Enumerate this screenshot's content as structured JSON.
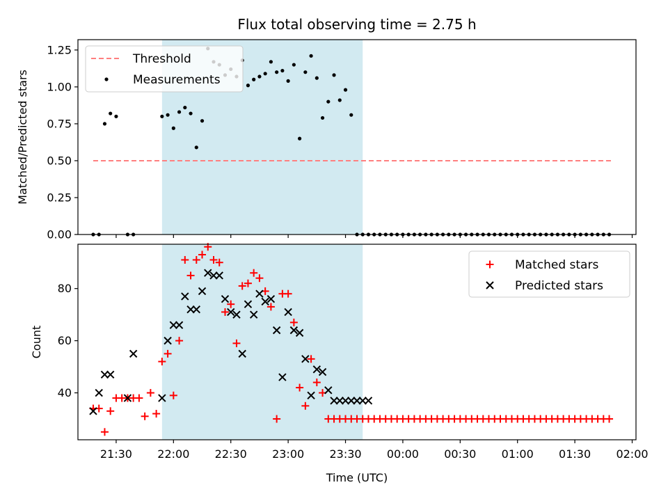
{
  "figure": {
    "title": "Flux total observing time = 2.75 h",
    "xlabel": "Time (UTC)",
    "x_tick_labels": [
      "21:30",
      "22:00",
      "22:30",
      "23:00",
      "23:30",
      "00:00",
      "00:30",
      "01:00",
      "01:30",
      "02:00"
    ]
  },
  "colors": {
    "shade": "#add8e6",
    "threshold": "#ff7f7f",
    "measurement": "#000000",
    "matched": "#ff0000",
    "predicted": "#000000"
  },
  "chart_data": [
    {
      "type": "scatter",
      "panel": "top",
      "ylabel": "Matched/Predicted stars",
      "ylim": [
        0,
        1.32
      ],
      "y_ticks": [
        0,
        0.25,
        0.5,
        0.75,
        1.0,
        1.25
      ],
      "y_tick_labels": [
        "0.00",
        "0.25",
        "0.50",
        "0.75",
        "1.00",
        "1.25"
      ],
      "xlim": [
        "21:10",
        "02:02"
      ],
      "shaded_span": [
        "21:54",
        "23:39"
      ],
      "grid": false,
      "legend_position": "top-left",
      "threshold": {
        "name": "Threshold",
        "value": 0.5,
        "x": [
          "21:18",
          "02:07"
        ]
      },
      "series": [
        {
          "name": "Measurements",
          "x": [
            "21:18",
            "21:21",
            "21:24",
            "21:27",
            "21:30",
            "21:36",
            "21:39",
            "21:54",
            "21:57",
            "22:00",
            "22:03",
            "22:06",
            "22:09",
            "22:12",
            "22:15",
            "22:18",
            "22:21",
            "22:24",
            "22:27",
            "22:30",
            "22:33",
            "22:36",
            "22:39",
            "22:42",
            "22:45",
            "22:48",
            "22:51",
            "22:54",
            "22:57",
            "23:00",
            "23:03",
            "23:06",
            "23:09",
            "23:12",
            "23:15",
            "23:18",
            "23:21",
            "23:24",
            "23:27",
            "23:30",
            "23:33",
            "23:36",
            "23:39",
            "23:42",
            "23:45",
            "23:48",
            "23:51",
            "23:54",
            "23:57",
            "00:00",
            "00:03",
            "00:06",
            "00:09",
            "00:12",
            "00:15",
            "00:18",
            "00:21",
            "00:24",
            "00:27",
            "00:30",
            "00:33",
            "00:36",
            "00:39",
            "00:42",
            "00:45",
            "00:48",
            "00:51",
            "00:54",
            "00:57",
            "01:00",
            "01:03",
            "01:06",
            "01:09",
            "01:12",
            "01:15",
            "01:18",
            "01:21",
            "01:24",
            "01:27",
            "01:30",
            "01:33",
            "01:36",
            "01:39",
            "01:42",
            "01:45",
            "01:48"
          ],
          "y": [
            0,
            0,
            0.75,
            0.82,
            0.8,
            0,
            0,
            0.8,
            0.81,
            0.72,
            0.83,
            0.86,
            0.82,
            0.59,
            0.77,
            1.26,
            1.17,
            1.15,
            1.08,
            1.12,
            1.07,
            1.18,
            1.01,
            1.05,
            1.07,
            1.09,
            1.17,
            1.1,
            1.11,
            1.04,
            1.15,
            0.65,
            1.1,
            1.21,
            1.06,
            0.79,
            0.9,
            1.08,
            0.91,
            0.98,
            0.81,
            0,
            0,
            0,
            0,
            0,
            0,
            0,
            0,
            0,
            0,
            0,
            0,
            0,
            0,
            0,
            0,
            0,
            0,
            0,
            0,
            0,
            0,
            0,
            0,
            0,
            0,
            0,
            0,
            0,
            0,
            0,
            0,
            0,
            0,
            0,
            0,
            0,
            0,
            0,
            0,
            0,
            0,
            0,
            0,
            0
          ]
        }
      ]
    },
    {
      "type": "scatter",
      "panel": "bottom",
      "ylabel": "Count",
      "ylim": [
        22,
        97
      ],
      "y_ticks": [
        40,
        60,
        80
      ],
      "y_tick_labels": [
        "40",
        "60",
        "80"
      ],
      "xlim": [
        "21:10",
        "02:02"
      ],
      "shaded_span": [
        "21:54",
        "23:39"
      ],
      "grid": false,
      "legend_position": "top-right",
      "series": [
        {
          "name": "Matched stars",
          "marker": "plus",
          "x": [
            "21:18",
            "21:21",
            "21:24",
            "21:27",
            "21:30",
            "21:33",
            "21:36",
            "21:39",
            "21:42",
            "21:45",
            "21:48",
            "21:51",
            "21:54",
            "21:57",
            "22:00",
            "22:03",
            "22:06",
            "22:09",
            "22:12",
            "22:15",
            "22:18",
            "22:21",
            "22:24",
            "22:27",
            "22:30",
            "22:33",
            "22:36",
            "22:39",
            "22:42",
            "22:45",
            "22:48",
            "22:51",
            "22:54",
            "22:57",
            "23:00",
            "23:03",
            "23:06",
            "23:09",
            "23:12",
            "23:15",
            "23:18",
            "23:21",
            "23:24",
            "23:27",
            "23:30",
            "23:33",
            "23:36",
            "23:39",
            "23:42",
            "23:45",
            "23:48",
            "23:51",
            "23:54",
            "23:57",
            "00:00",
            "00:03",
            "00:06",
            "00:09",
            "00:12",
            "00:15",
            "00:18",
            "00:21",
            "00:24",
            "00:27",
            "00:30",
            "00:33",
            "00:36",
            "00:39",
            "00:42",
            "00:45",
            "00:48",
            "00:51",
            "00:54",
            "00:57",
            "01:00",
            "01:03",
            "01:06",
            "01:09",
            "01:12",
            "01:15",
            "01:18",
            "01:21",
            "01:24",
            "01:27",
            "01:30",
            "01:33",
            "01:36",
            "01:39",
            "01:42",
            "01:45",
            "01:48"
          ],
          "y": [
            34,
            34,
            25,
            33,
            38,
            38,
            38,
            38,
            38,
            31,
            40,
            32,
            52,
            55,
            39,
            60,
            91,
            85,
            91,
            93,
            96,
            91,
            90,
            71,
            74,
            59,
            81,
            82,
            86,
            84,
            79,
            73,
            30,
            78,
            78,
            67,
            42,
            35,
            53,
            44,
            40,
            30,
            30,
            30,
            30,
            30,
            30,
            30,
            30,
            30,
            30,
            30,
            30,
            30,
            30,
            30,
            30,
            30,
            30,
            30,
            30,
            30,
            30,
            30,
            30,
            30,
            30,
            30,
            30,
            30,
            30,
            30,
            30,
            30,
            30,
            30,
            30,
            30,
            30,
            30,
            30,
            30,
            30,
            30,
            30,
            30,
            30,
            30,
            30,
            30,
            30
          ]
        },
        {
          "name": "Predicted stars",
          "marker": "x",
          "x": [
            "21:18",
            "21:21",
            "21:24",
            "21:27",
            "21:36",
            "21:39",
            "21:54",
            "21:57",
            "22:00",
            "22:03",
            "22:06",
            "22:09",
            "22:12",
            "22:15",
            "22:18",
            "22:21",
            "22:24",
            "22:27",
            "22:30",
            "22:33",
            "22:36",
            "22:39",
            "22:42",
            "22:45",
            "22:48",
            "22:51",
            "22:54",
            "22:57",
            "23:00",
            "23:03",
            "23:06",
            "23:09",
            "23:12",
            "23:15",
            "23:18",
            "23:21",
            "23:24",
            "23:27",
            "23:30",
            "23:33",
            "23:36",
            "23:39",
            "23:42"
          ],
          "y": [
            33,
            40,
            47,
            47,
            38,
            55,
            38,
            60,
            66,
            66,
            77,
            72,
            72,
            79,
            86,
            85,
            85,
            76,
            71,
            70,
            55,
            74,
            70,
            78,
            75,
            76,
            64,
            46,
            71,
            64,
            63,
            53,
            39,
            49,
            48,
            41,
            37,
            37,
            37,
            37,
            37,
            37,
            37
          ]
        }
      ]
    }
  ]
}
